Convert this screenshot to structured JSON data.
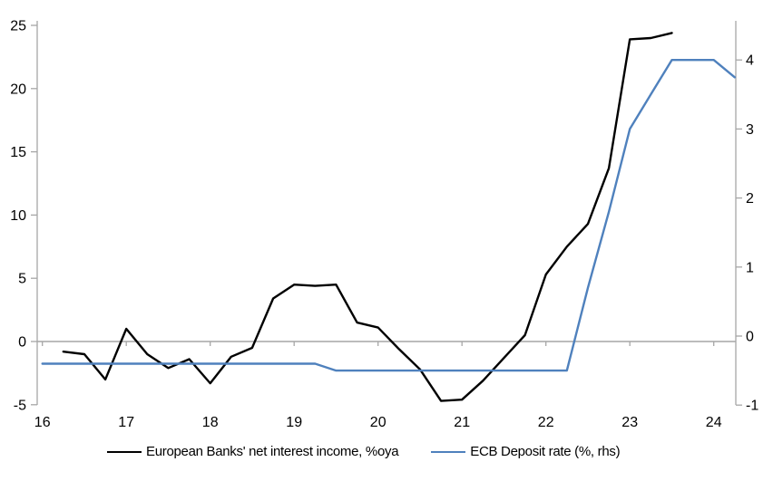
{
  "chart_data": {
    "type": "line",
    "title": "",
    "grid": "zero-line-only",
    "legend_position": "bottom",
    "x_axis": {
      "ticks": [
        16,
        17,
        18,
        19,
        20,
        21,
        22,
        23,
        24
      ]
    },
    "left_axis": {
      "ticks": [
        25,
        20,
        15,
        10,
        5,
        0,
        -5
      ],
      "min": -5,
      "max": 25
    },
    "right_axis": {
      "ticks": [
        4,
        3,
        2,
        1,
        0,
        -1
      ],
      "min": -1,
      "max": 4.5
    },
    "series": [
      {
        "name": "European Banks' net interest income, %oya",
        "axis": "left",
        "color": "#000000",
        "x": [
          16.25,
          16.5,
          16.75,
          17,
          17.25,
          17.5,
          17.75,
          18,
          18.25,
          18.5,
          18.75,
          19,
          19.25,
          19.5,
          19.75,
          20,
          20.25,
          20.5,
          20.75,
          21,
          21.25,
          21.5,
          21.75,
          22,
          22.25,
          22.5,
          22.75,
          23,
          23.25,
          23.5
        ],
        "values": [
          -0.8,
          -1.0,
          -3.0,
          1.0,
          -1.0,
          -2.1,
          -1.4,
          -3.3,
          -1.2,
          -0.5,
          3.4,
          4.5,
          4.4,
          4.5,
          1.5,
          1.1,
          -0.6,
          -2.2,
          -4.7,
          -4.6,
          -3.1,
          -1.3,
          0.5,
          5.3,
          7.5,
          9.3,
          13.7,
          23.9,
          24.0,
          24.4
        ]
      },
      {
        "name": "ECB Deposit rate (%, rhs)",
        "axis": "right",
        "color": "#4f81bd",
        "x": [
          16,
          16.25,
          16.5,
          16.75,
          17,
          17.25,
          17.5,
          17.75,
          18,
          18.25,
          18.5,
          18.75,
          19,
          19.25,
          19.5,
          19.75,
          20,
          20.25,
          20.5,
          20.75,
          21,
          21.25,
          21.5,
          21.75,
          22,
          22.25,
          22.5,
          22.75,
          23,
          23.25,
          23.5,
          23.75,
          24,
          24.25
        ],
        "values": [
          -0.4,
          -0.4,
          -0.4,
          -0.4,
          -0.4,
          -0.4,
          -0.4,
          -0.4,
          -0.4,
          -0.4,
          -0.4,
          -0.4,
          -0.4,
          -0.4,
          -0.5,
          -0.5,
          -0.5,
          -0.5,
          -0.5,
          -0.5,
          -0.5,
          -0.5,
          -0.5,
          -0.5,
          -0.5,
          -0.5,
          0.7,
          1.8,
          3.0,
          3.5,
          4.0,
          4.0,
          4.0,
          3.75
        ]
      }
    ]
  },
  "colors": {
    "axis": "#a6a6a6",
    "text": "#000000"
  }
}
